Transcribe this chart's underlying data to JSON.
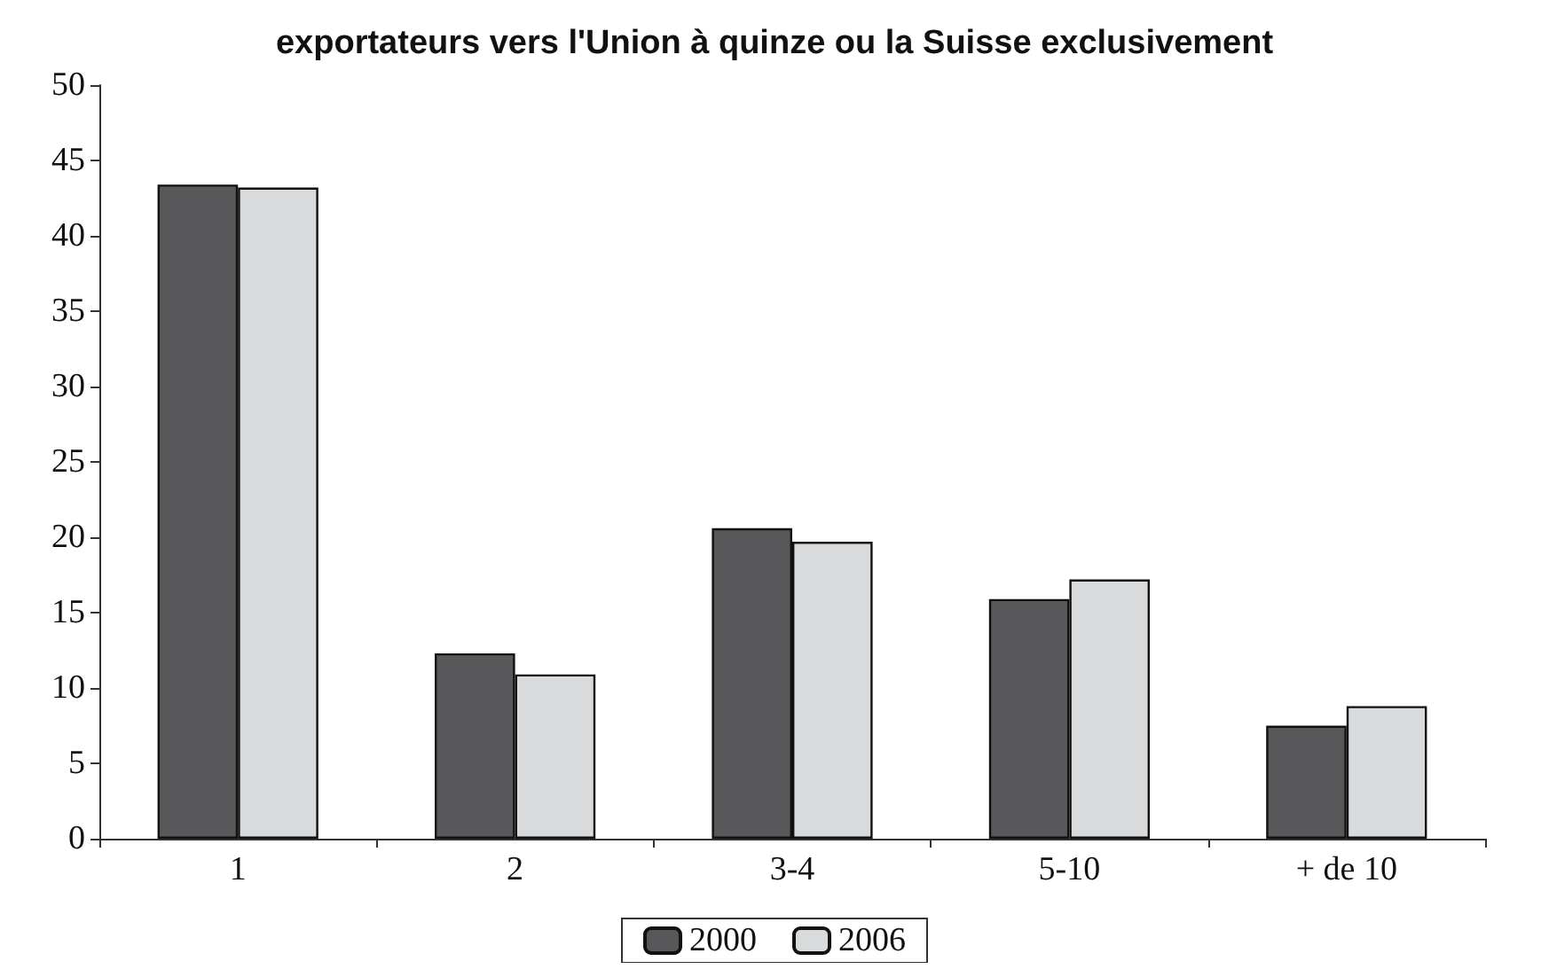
{
  "chart_data": {
    "type": "bar",
    "title": "exportateurs vers l'Union à quinze ou la Suisse exclusivement",
    "categories": [
      "1",
      "2",
      "3-4",
      "5-10",
      "+ de 10"
    ],
    "series": [
      {
        "name": "2000",
        "color": "#58585a",
        "values": [
          43.4,
          12.3,
          20.6,
          15.9,
          7.5
        ]
      },
      {
        "name": "2006",
        "color": "#d9dadc",
        "values": [
          43.2,
          10.9,
          19.7,
          17.2,
          8.8
        ]
      }
    ],
    "ylim": [
      0,
      50
    ],
    "yticks": [
      0,
      5,
      10,
      15,
      20,
      25,
      30,
      35,
      40,
      45,
      50
    ],
    "grid": false,
    "legend": "bottom"
  }
}
